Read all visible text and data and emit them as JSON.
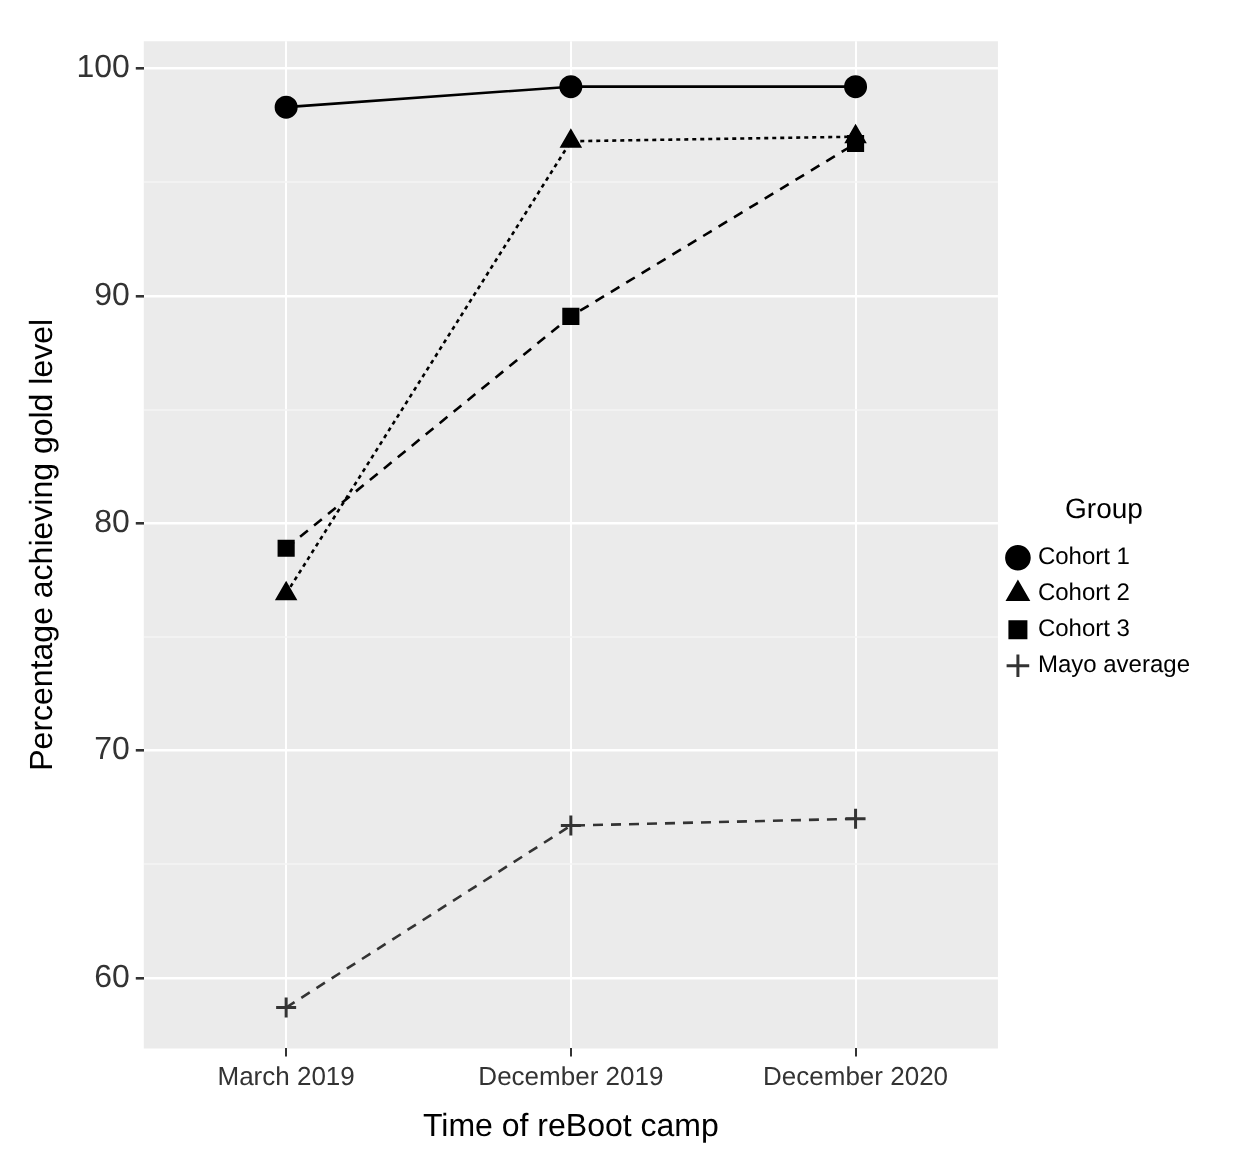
{
  "chart_data": {
    "type": "line",
    "xlabel": "Time of reBoot camp",
    "ylabel": "Percentage achieving gold level",
    "legend_title": "Group",
    "categories": [
      "March 2019",
      "December 2019",
      "December 2020"
    ],
    "series": [
      {
        "name": "Cohort 1",
        "color": "#000000",
        "marker": "circle",
        "line_style": "solid",
        "values": [
          98.3,
          99.2,
          99.2
        ]
      },
      {
        "name": "Cohort 2",
        "color": "#000000",
        "marker": "triangle",
        "line_style": "dotted",
        "values": [
          76.9,
          96.8,
          97.0
        ]
      },
      {
        "name": "Cohort 3",
        "color": "#000000",
        "marker": "square",
        "line_style": "dashed",
        "values": [
          78.9,
          89.1,
          96.7
        ]
      },
      {
        "name": "Mayo average",
        "color": "#333333",
        "marker": "cross",
        "line_style": "dashed",
        "values": [
          58.7,
          66.7,
          67.0
        ]
      }
    ],
    "ylim": [
      56.9,
      101.2
    ],
    "yticks": [
      60,
      {
        "value": 65,
        "label": null
      },
      70,
      {
        "value": 75,
        "label": null
      },
      80,
      {
        "value": 85,
        "label": null
      },
      90,
      {
        "value": 95,
        "label": null
      },
      100
    ],
    "grid": true,
    "legend": "right"
  }
}
